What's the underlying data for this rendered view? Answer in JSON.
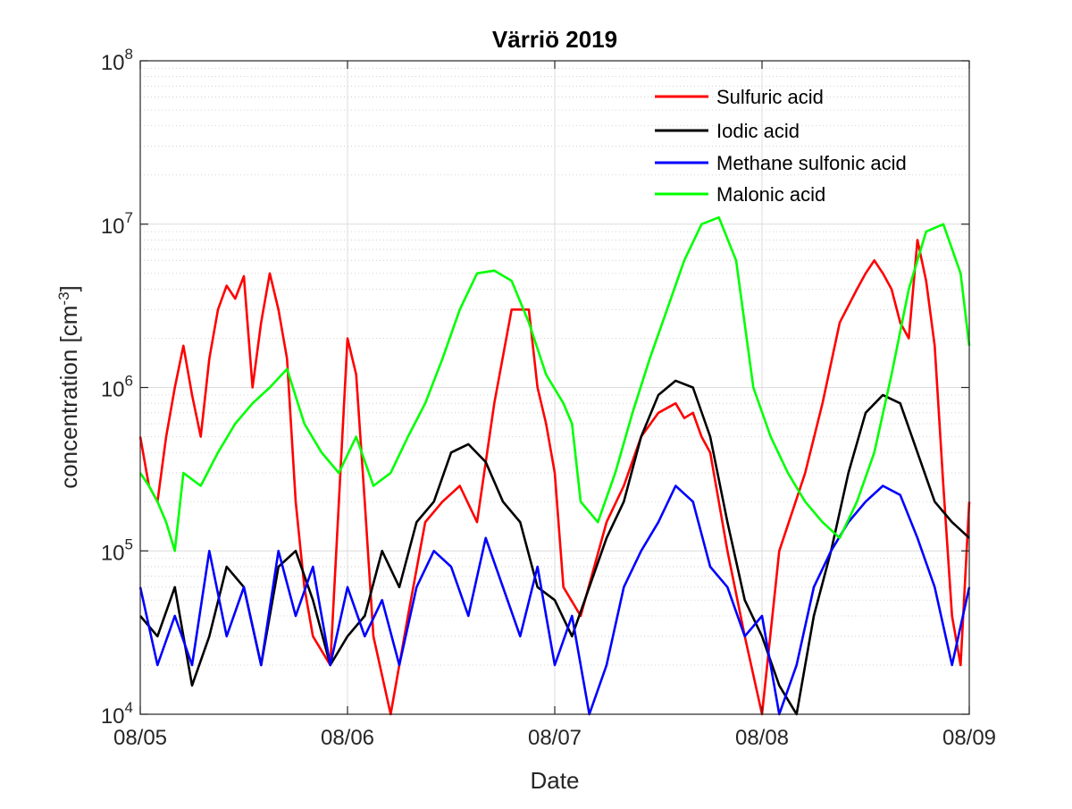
{
  "chart_data": {
    "type": "line",
    "title": "Värriö 2019",
    "xlabel": "Date",
    "ylabel": "concentration [cm⁻³]",
    "ylabel_main": "concentration [cm",
    "ylabel_sup": "-3",
    "ylabel_end": "]",
    "yscale": "log",
    "x_unit": "days",
    "x_ticks": [
      {
        "value": "2019-08-05",
        "label": "08/05"
      },
      {
        "value": "2019-08-06",
        "label": "08/06"
      },
      {
        "value": "2019-08-07",
        "label": "08/07"
      },
      {
        "value": "2019-08-08",
        "label": "08/08"
      },
      {
        "value": "2019-08-09",
        "label": "08/09"
      }
    ],
    "xlim": [
      "2019-08-05T00:00",
      "2019-08-09T00:00"
    ],
    "ylim": [
      10000,
      100000000
    ],
    "y_ticks": [
      {
        "value": 10000,
        "base": "10",
        "exp": "4"
      },
      {
        "value": 100000,
        "base": "10",
        "exp": "5"
      },
      {
        "value": 1000000,
        "base": "10",
        "exp": "6"
      },
      {
        "value": 10000000,
        "base": "10",
        "exp": "7"
      },
      {
        "value": 100000000,
        "base": "10",
        "exp": "8"
      }
    ],
    "grid": true,
    "legend_position": "top-right",
    "series": [
      {
        "name": "Sulfuric acid",
        "color": "#ff0000",
        "x": [
          "2019-08-05T00:00",
          "2019-08-05T01:00",
          "2019-08-05T02:00",
          "2019-08-05T03:00",
          "2019-08-05T04:00",
          "2019-08-05T05:00",
          "2019-08-05T06:00",
          "2019-08-05T07:00",
          "2019-08-05T08:00",
          "2019-08-05T09:00",
          "2019-08-05T10:00",
          "2019-08-05T11:00",
          "2019-08-05T12:00",
          "2019-08-05T13:00",
          "2019-08-05T14:00",
          "2019-08-05T15:00",
          "2019-08-05T16:00",
          "2019-08-05T17:00",
          "2019-08-05T18:00",
          "2019-08-05T19:00",
          "2019-08-05T20:00",
          "2019-08-05T22:00",
          "2019-08-06T00:00",
          "2019-08-06T01:00",
          "2019-08-06T02:00",
          "2019-08-06T03:00",
          "2019-08-06T05:00",
          "2019-08-06T07:00",
          "2019-08-06T09:00",
          "2019-08-06T11:00",
          "2019-08-06T13:00",
          "2019-08-06T15:00",
          "2019-08-06T17:00",
          "2019-08-06T19:00",
          "2019-08-06T21:00",
          "2019-08-06T22:00",
          "2019-08-06T23:00",
          "2019-08-07T00:00",
          "2019-08-07T01:00",
          "2019-08-07T03:00",
          "2019-08-07T06:00",
          "2019-08-07T08:00",
          "2019-08-07T10:00",
          "2019-08-07T12:00",
          "2019-08-07T14:00",
          "2019-08-07T15:00",
          "2019-08-07T16:00",
          "2019-08-07T17:00",
          "2019-08-07T18:00",
          "2019-08-07T20:00",
          "2019-08-07T22:00",
          "2019-08-08T00:00",
          "2019-08-08T02:00",
          "2019-08-08T05:00",
          "2019-08-08T07:00",
          "2019-08-08T09:00",
          "2019-08-08T11:00",
          "2019-08-08T12:00",
          "2019-08-08T13:00",
          "2019-08-08T14:00",
          "2019-08-08T15:00",
          "2019-08-08T16:00",
          "2019-08-08T17:00",
          "2019-08-08T18:00",
          "2019-08-08T19:00",
          "2019-08-08T20:00",
          "2019-08-08T21:00",
          "2019-08-08T22:00",
          "2019-08-08T23:00",
          "2019-08-09T00:00"
        ],
        "y": [
          500000,
          250000,
          200000,
          500000,
          1000000,
          1800000,
          900000,
          500000,
          1500000,
          3000000,
          4200000,
          3500000,
          4800000,
          1000000,
          2500000,
          5000000,
          3000000,
          1500000,
          200000,
          60000,
          30000,
          20000,
          2000000,
          1200000,
          200000,
          30000,
          10000,
          40000,
          150000,
          200000,
          250000,
          150000,
          800000,
          3000000,
          3000000,
          1000000,
          600000,
          300000,
          60000,
          40000,
          150000,
          250000,
          500000,
          700000,
          800000,
          650000,
          700000,
          500000,
          400000,
          100000,
          30000,
          10000,
          100000,
          300000,
          800000,
          2500000,
          4000000,
          5000000,
          6000000,
          5000000,
          4000000,
          2500000,
          2000000,
          8000000,
          4500000,
          1800000,
          250000,
          40000,
          20000,
          200000
        ]
      },
      {
        "name": "Iodic acid",
        "color": "#000000",
        "x": [
          "2019-08-05T00:00",
          "2019-08-05T02:00",
          "2019-08-05T04:00",
          "2019-08-05T06:00",
          "2019-08-05T08:00",
          "2019-08-05T10:00",
          "2019-08-05T12:00",
          "2019-08-05T14:00",
          "2019-08-05T16:00",
          "2019-08-05T18:00",
          "2019-08-05T20:00",
          "2019-08-05T22:00",
          "2019-08-06T00:00",
          "2019-08-06T02:00",
          "2019-08-06T04:00",
          "2019-08-06T06:00",
          "2019-08-06T08:00",
          "2019-08-06T10:00",
          "2019-08-06T12:00",
          "2019-08-06T14:00",
          "2019-08-06T16:00",
          "2019-08-06T18:00",
          "2019-08-06T20:00",
          "2019-08-06T22:00",
          "2019-08-07T00:00",
          "2019-08-07T02:00",
          "2019-08-07T04:00",
          "2019-08-07T06:00",
          "2019-08-07T08:00",
          "2019-08-07T10:00",
          "2019-08-07T12:00",
          "2019-08-07T14:00",
          "2019-08-07T16:00",
          "2019-08-07T18:00",
          "2019-08-07T20:00",
          "2019-08-07T22:00",
          "2019-08-08T00:00",
          "2019-08-08T02:00",
          "2019-08-08T04:00",
          "2019-08-08T06:00",
          "2019-08-08T08:00",
          "2019-08-08T10:00",
          "2019-08-08T12:00",
          "2019-08-08T14:00",
          "2019-08-08T16:00",
          "2019-08-08T18:00",
          "2019-08-08T20:00",
          "2019-08-08T22:00",
          "2019-08-09T00:00"
        ],
        "y": [
          40000,
          30000,
          60000,
          15000,
          30000,
          80000,
          60000,
          20000,
          80000,
          100000,
          50000,
          20000,
          30000,
          40000,
          100000,
          60000,
          150000,
          200000,
          400000,
          450000,
          350000,
          200000,
          150000,
          60000,
          50000,
          30000,
          60000,
          120000,
          200000,
          500000,
          900000,
          1100000,
          1000000,
          500000,
          150000,
          50000,
          30000,
          15000,
          10000,
          40000,
          100000,
          300000,
          700000,
          900000,
          800000,
          400000,
          200000,
          150000,
          120000
        ]
      },
      {
        "name": "Methane sulfonic acid",
        "color": "#0000ff",
        "x": [
          "2019-08-05T00:00",
          "2019-08-05T02:00",
          "2019-08-05T04:00",
          "2019-08-05T06:00",
          "2019-08-05T08:00",
          "2019-08-05T10:00",
          "2019-08-05T12:00",
          "2019-08-05T14:00",
          "2019-08-05T16:00",
          "2019-08-05T18:00",
          "2019-08-05T20:00",
          "2019-08-05T22:00",
          "2019-08-06T00:00",
          "2019-08-06T02:00",
          "2019-08-06T04:00",
          "2019-08-06T06:00",
          "2019-08-06T08:00",
          "2019-08-06T10:00",
          "2019-08-06T12:00",
          "2019-08-06T14:00",
          "2019-08-06T16:00",
          "2019-08-06T18:00",
          "2019-08-06T20:00",
          "2019-08-06T22:00",
          "2019-08-07T00:00",
          "2019-08-07T02:00",
          "2019-08-07T04:00",
          "2019-08-07T06:00",
          "2019-08-07T08:00",
          "2019-08-07T10:00",
          "2019-08-07T12:00",
          "2019-08-07T14:00",
          "2019-08-07T16:00",
          "2019-08-07T18:00",
          "2019-08-07T20:00",
          "2019-08-07T22:00",
          "2019-08-08T00:00",
          "2019-08-08T02:00",
          "2019-08-08T04:00",
          "2019-08-08T06:00",
          "2019-08-08T08:00",
          "2019-08-08T10:00",
          "2019-08-08T12:00",
          "2019-08-08T14:00",
          "2019-08-08T16:00",
          "2019-08-08T18:00",
          "2019-08-08T20:00",
          "2019-08-08T22:00",
          "2019-08-09T00:00"
        ],
        "y": [
          60000,
          20000,
          40000,
          20000,
          100000,
          30000,
          60000,
          20000,
          100000,
          40000,
          80000,
          20000,
          60000,
          30000,
          50000,
          20000,
          60000,
          100000,
          80000,
          40000,
          120000,
          60000,
          30000,
          80000,
          20000,
          40000,
          10000,
          20000,
          60000,
          100000,
          150000,
          250000,
          200000,
          80000,
          60000,
          30000,
          40000,
          10000,
          20000,
          60000,
          100000,
          150000,
          200000,
          250000,
          220000,
          120000,
          60000,
          20000,
          60000
        ]
      },
      {
        "name": "Malonic acid",
        "color": "#00ff00",
        "x": [
          "2019-08-05T00:00",
          "2019-08-05T01:00",
          "2019-08-05T02:00",
          "2019-08-05T03:00",
          "2019-08-05T04:00",
          "2019-08-05T05:00",
          "2019-08-05T07:00",
          "2019-08-05T09:00",
          "2019-08-05T11:00",
          "2019-08-05T13:00",
          "2019-08-05T15:00",
          "2019-08-05T17:00",
          "2019-08-05T19:00",
          "2019-08-05T21:00",
          "2019-08-05T23:00",
          "2019-08-06T01:00",
          "2019-08-06T03:00",
          "2019-08-06T05:00",
          "2019-08-06T07:00",
          "2019-08-06T09:00",
          "2019-08-06T11:00",
          "2019-08-06T13:00",
          "2019-08-06T15:00",
          "2019-08-06T17:00",
          "2019-08-06T19:00",
          "2019-08-06T21:00",
          "2019-08-06T23:00",
          "2019-08-07T01:00",
          "2019-08-07T02:00",
          "2019-08-07T03:00",
          "2019-08-07T05:00",
          "2019-08-07T07:00",
          "2019-08-07T09:00",
          "2019-08-07T11:00",
          "2019-08-07T13:00",
          "2019-08-07T15:00",
          "2019-08-07T17:00",
          "2019-08-07T19:00",
          "2019-08-07T21:00",
          "2019-08-07T23:00",
          "2019-08-08T01:00",
          "2019-08-08T03:00",
          "2019-08-08T05:00",
          "2019-08-08T07:00",
          "2019-08-08T09:00",
          "2019-08-08T11:00",
          "2019-08-08T13:00",
          "2019-08-08T15:00",
          "2019-08-08T17:00",
          "2019-08-08T19:00",
          "2019-08-08T21:00",
          "2019-08-08T23:00",
          "2019-08-09T00:00"
        ],
        "y": [
          300000,
          250000,
          200000,
          150000,
          100000,
          300000,
          250000,
          400000,
          600000,
          800000,
          1000000,
          1300000,
          600000,
          400000,
          300000,
          500000,
          250000,
          300000,
          500000,
          800000,
          1500000,
          3000000,
          5000000,
          5200000,
          4500000,
          2500000,
          1200000,
          800000,
          600000,
          200000,
          150000,
          300000,
          700000,
          1500000,
          3000000,
          6000000,
          10000000,
          11000000,
          6000000,
          1000000,
          500000,
          300000,
          200000,
          150000,
          120000,
          200000,
          400000,
          1200000,
          4000000,
          9000000,
          10000000,
          5000000,
          1800000
        ]
      }
    ]
  }
}
